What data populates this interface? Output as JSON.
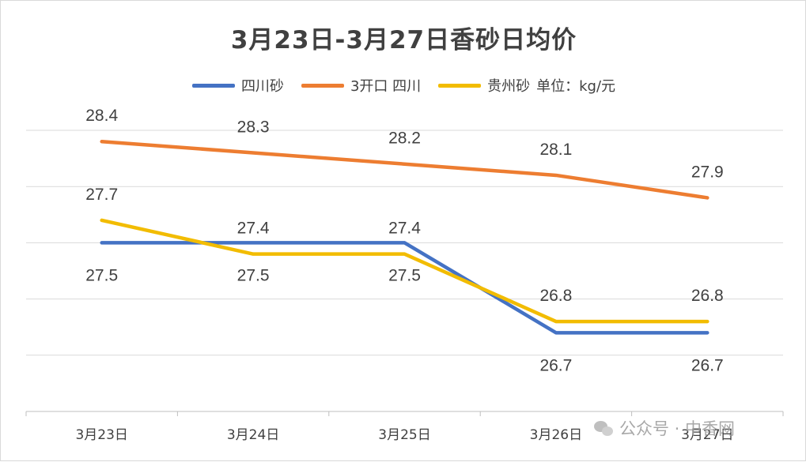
{
  "chart_data": {
    "type": "line",
    "title": "3月23日-3月27日香砂日均价",
    "categories": [
      "3月23日",
      "3月24日",
      "3月25日",
      "3月26日",
      "3月27日"
    ],
    "unit_note": "单位：kg/元",
    "ylim": [
      26.0,
      28.5
    ],
    "gridlines": [
      26.0,
      26.5,
      27.0,
      27.5,
      28.0,
      28.5
    ],
    "xlabel": "",
    "ylabel": "",
    "grid": true,
    "legend_position": "top",
    "series": [
      {
        "name": "四川砂",
        "color": "#4472C4",
        "values": [
          27.5,
          27.5,
          27.5,
          26.7,
          26.7
        ],
        "labels": [
          "27.5",
          "27.5",
          "27.5",
          "26.7",
          "26.7"
        ],
        "label_side": "below"
      },
      {
        "name": "3开口 四川",
        "color": "#ED7D31",
        "values": [
          28.4,
          28.3,
          28.2,
          28.1,
          27.9
        ],
        "labels": [
          "28.4",
          "28.3",
          "28.2",
          "28.1",
          "27.9"
        ],
        "label_side": "above"
      },
      {
        "name": "贵州砂",
        "color": "#F2BC00",
        "values": [
          27.7,
          27.4,
          27.4,
          26.8,
          26.8
        ],
        "labels": [
          "27.7",
          "27.4",
          "27.4",
          "26.8",
          "26.8"
        ],
        "label_side": "above"
      }
    ]
  },
  "watermark": {
    "text": "公众号 · 中香网",
    "icon": "wechat-icon"
  }
}
